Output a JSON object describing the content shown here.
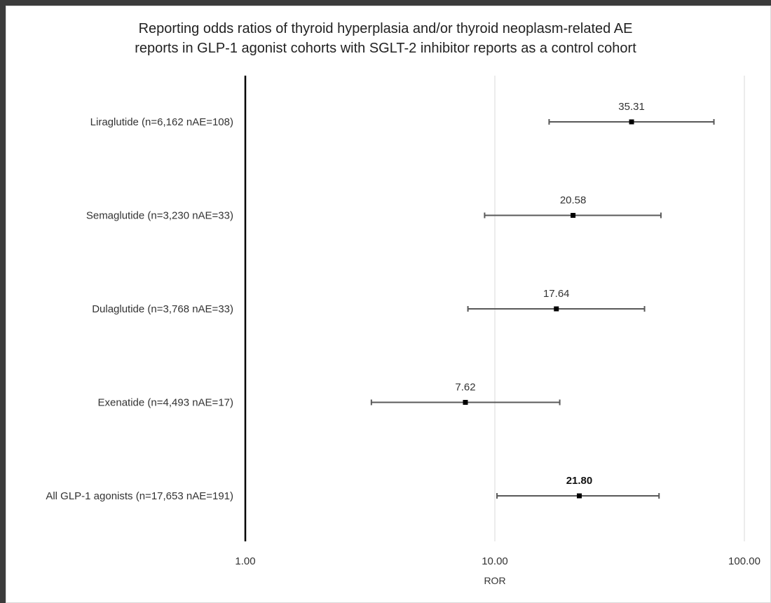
{
  "chart_data": {
    "type": "forest",
    "title_lines": [
      "Reporting odds ratios of thyroid hyperplasia and/or thyroid neoplasm-related AE",
      "reports in GLP-1 agonist cohorts with SGLT-2 inhibitor reports as a control cohort"
    ],
    "xlabel": "ROR",
    "x_scale": "log10",
    "xlim": [
      1,
      100
    ],
    "x_ticks": [
      {
        "value": 1,
        "label": "1.00"
      },
      {
        "value": 10,
        "label": "10.00"
      },
      {
        "value": 100,
        "label": "100.00"
      }
    ],
    "reference_line": 1,
    "grid": "vertical-major",
    "rows": [
      {
        "category": "Liraglutide (n=6,162 nAE=108)",
        "estimate": 35.31,
        "label": "35.31",
        "ci_low": 16.5,
        "ci_high": 75.5,
        "bold": false
      },
      {
        "category": "Semaglutide (n=3,230 nAE=33)",
        "estimate": 20.58,
        "label": "20.58",
        "ci_low": 9.1,
        "ci_high": 46.3,
        "bold": false
      },
      {
        "category": "Dulaglutide (n=3,768 nAE=33)",
        "estimate": 17.64,
        "label": "17.64",
        "ci_low": 7.8,
        "ci_high": 39.8,
        "bold": false
      },
      {
        "category": "Exenatide (n=4,493 nAE=17)",
        "estimate": 7.62,
        "label": "7.62",
        "ci_low": 3.2,
        "ci_high": 18.2,
        "bold": false
      },
      {
        "category": "All GLP-1 agonists (n=17,653 nAE=191)",
        "estimate": 21.8,
        "label": "21.80",
        "ci_low": 10.2,
        "ci_high": 45.5,
        "bold": true
      }
    ]
  }
}
